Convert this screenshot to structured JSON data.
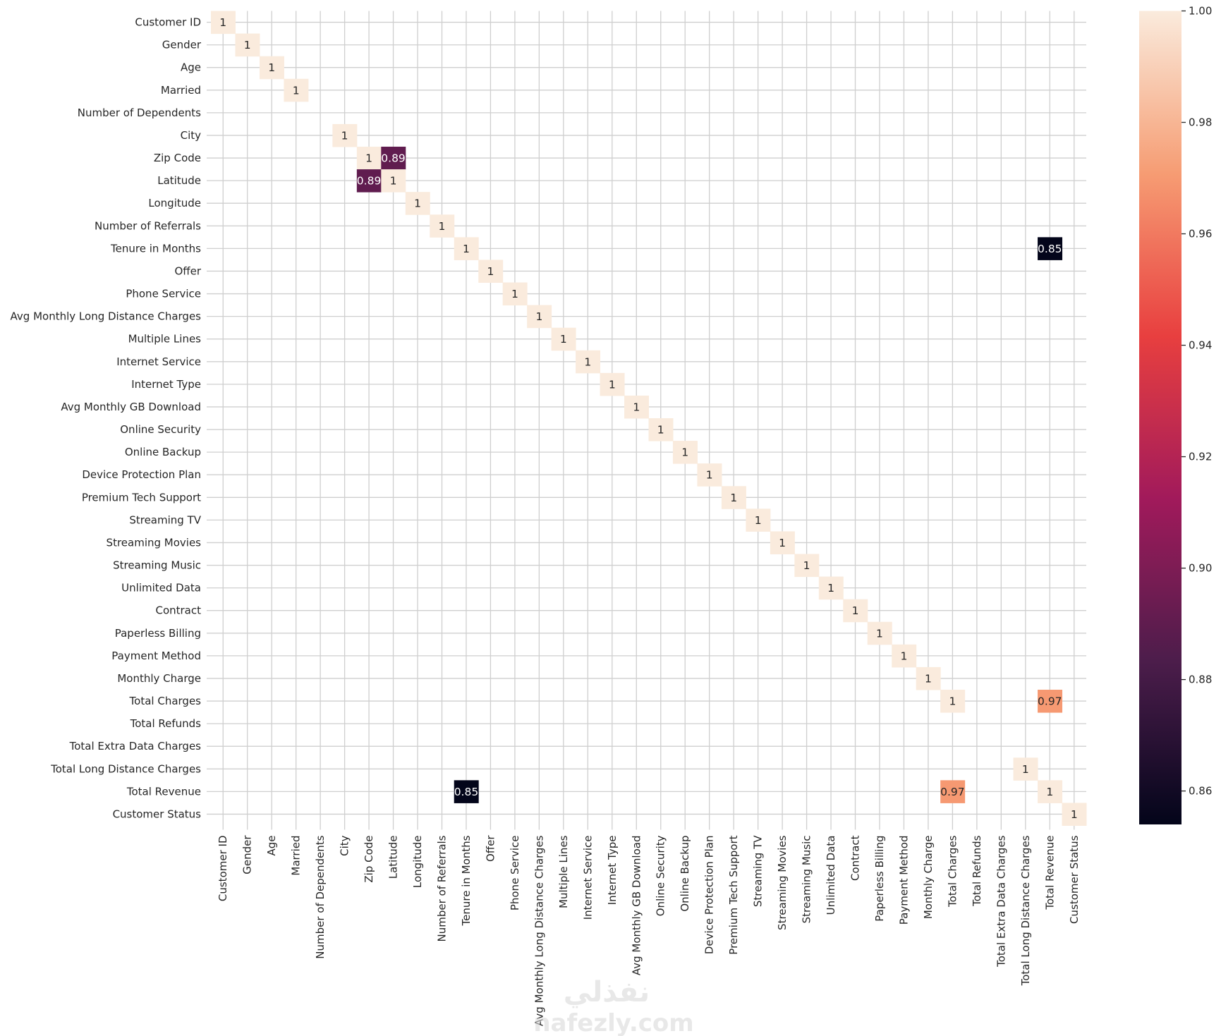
{
  "chart_data": {
    "type": "heatmap",
    "title": "",
    "labels": [
      "Customer ID",
      "Gender",
      "Age",
      "Married",
      "Number of Dependents",
      "City",
      "Zip Code",
      "Latitude",
      "Longitude",
      "Number of Referrals",
      "Tenure in Months",
      "Offer",
      "Phone Service",
      "Avg Monthly Long Distance Charges",
      "Multiple Lines",
      "Internet Service",
      "Internet Type",
      "Avg Monthly GB Download",
      "Online Security",
      "Online Backup",
      "Device Protection Plan",
      "Premium Tech Support",
      "Streaming TV",
      "Streaming Movies",
      "Streaming Music",
      "Unlimited Data",
      "Contract",
      "Paperless Billing",
      "Payment Method",
      "Monthly Charge",
      "Total Charges",
      "Total Refunds",
      "Total Extra Data Charges",
      "Total Long Distance Charges",
      "Total Revenue",
      "Customer Status"
    ],
    "cells": [
      {
        "row": 0,
        "col": 0,
        "value": 1,
        "label": "1"
      },
      {
        "row": 1,
        "col": 1,
        "value": 1,
        "label": "1"
      },
      {
        "row": 2,
        "col": 2,
        "value": 1,
        "label": "1"
      },
      {
        "row": 3,
        "col": 3,
        "value": 1,
        "label": "1"
      },
      {
        "row": 5,
        "col": 5,
        "value": 1,
        "label": "1"
      },
      {
        "row": 6,
        "col": 6,
        "value": 1,
        "label": "1"
      },
      {
        "row": 6,
        "col": 7,
        "value": 0.89,
        "label": "0.89"
      },
      {
        "row": 7,
        "col": 6,
        "value": 0.89,
        "label": "0.89"
      },
      {
        "row": 7,
        "col": 7,
        "value": 1,
        "label": "1"
      },
      {
        "row": 8,
        "col": 8,
        "value": 1,
        "label": "1"
      },
      {
        "row": 9,
        "col": 9,
        "value": 1,
        "label": "1"
      },
      {
        "row": 10,
        "col": 10,
        "value": 1,
        "label": "1"
      },
      {
        "row": 10,
        "col": 34,
        "value": 0.85,
        "label": "0.85"
      },
      {
        "row": 11,
        "col": 11,
        "value": 1,
        "label": "1"
      },
      {
        "row": 12,
        "col": 12,
        "value": 1,
        "label": "1"
      },
      {
        "row": 13,
        "col": 13,
        "value": 1,
        "label": "1"
      },
      {
        "row": 14,
        "col": 14,
        "value": 1,
        "label": "1"
      },
      {
        "row": 15,
        "col": 15,
        "value": 1,
        "label": "1"
      },
      {
        "row": 16,
        "col": 16,
        "value": 1,
        "label": "1"
      },
      {
        "row": 17,
        "col": 17,
        "value": 1,
        "label": "1"
      },
      {
        "row": 18,
        "col": 18,
        "value": 1,
        "label": "1"
      },
      {
        "row": 19,
        "col": 19,
        "value": 1,
        "label": "1"
      },
      {
        "row": 20,
        "col": 20,
        "value": 1,
        "label": "1"
      },
      {
        "row": 21,
        "col": 21,
        "value": 1,
        "label": "1"
      },
      {
        "row": 22,
        "col": 22,
        "value": 1,
        "label": "1"
      },
      {
        "row": 23,
        "col": 23,
        "value": 1,
        "label": "1"
      },
      {
        "row": 24,
        "col": 24,
        "value": 1,
        "label": "1"
      },
      {
        "row": 25,
        "col": 25,
        "value": 1,
        "label": "1"
      },
      {
        "row": 26,
        "col": 26,
        "value": 1,
        "label": "1"
      },
      {
        "row": 27,
        "col": 27,
        "value": 1,
        "label": "1"
      },
      {
        "row": 28,
        "col": 28,
        "value": 1,
        "label": "1"
      },
      {
        "row": 29,
        "col": 29,
        "value": 1,
        "label": "1"
      },
      {
        "row": 30,
        "col": 30,
        "value": 1,
        "label": "1"
      },
      {
        "row": 30,
        "col": 34,
        "value": 0.97,
        "label": "0.97"
      },
      {
        "row": 33,
        "col": 33,
        "value": 1,
        "label": "1"
      },
      {
        "row": 34,
        "col": 10,
        "value": 0.85,
        "label": "0.85"
      },
      {
        "row": 34,
        "col": 30,
        "value": 0.97,
        "label": "0.97"
      },
      {
        "row": 34,
        "col": 34,
        "value": 1,
        "label": "1"
      },
      {
        "row": 35,
        "col": 35,
        "value": 1,
        "label": "1"
      }
    ],
    "colorbar": {
      "colormap": "rocket",
      "vmin": 0.854,
      "vmax": 1.0,
      "ticks": [
        0.86,
        0.88,
        0.9,
        0.92,
        0.94,
        0.96,
        0.98,
        1.0
      ],
      "tick_labels": [
        "0.86",
        "0.88",
        "0.90",
        "0.92",
        "0.94",
        "0.96",
        "0.98",
        "1.00"
      ]
    },
    "grid": true,
    "watermark": {
      "arabic": "نفذلي",
      "latin": "nafezly.com"
    }
  }
}
